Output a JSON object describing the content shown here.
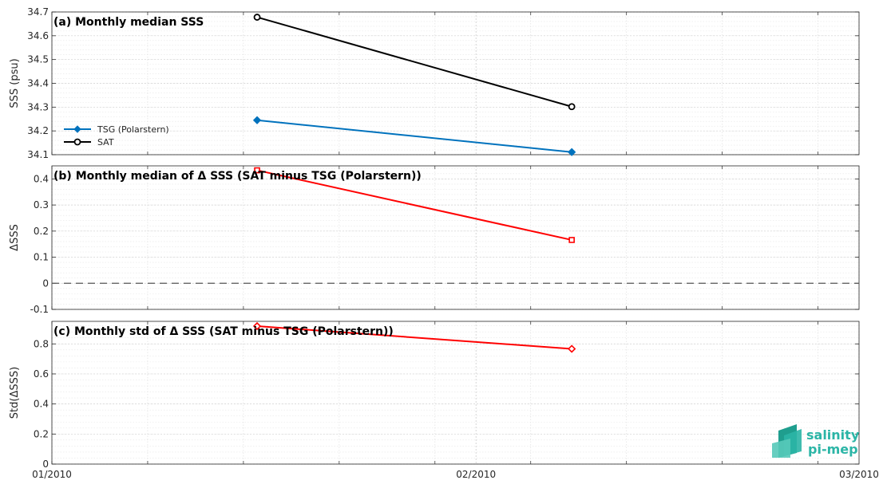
{
  "chart_data": [
    {
      "type": "line",
      "title": "(a) Monthly median SSS",
      "ylabel": "SSS (psu)",
      "xlim": [
        "2010-01-01",
        "2010-03-01"
      ],
      "ylim": [
        34.1,
        34.7
      ],
      "yticks": [
        34.1,
        34.2,
        34.3,
        34.4,
        34.5,
        34.6,
        34.7
      ],
      "ytick_labels": [
        "34.1",
        "34.2",
        "34.3",
        "34.4",
        "34.5",
        "34.6",
        "34.7"
      ],
      "grid": true,
      "legend_position": "left",
      "series": [
        {
          "name": "TSG (Polarstern)",
          "color": "#0072bd",
          "marker": "diamond",
          "x": [
            "2010-01-16",
            "2010-02-08"
          ],
          "y": [
            34.245,
            34.111
          ]
        },
        {
          "name": "SAT",
          "color": "#000000",
          "marker": "circle",
          "x": [
            "2010-01-16",
            "2010-02-08"
          ],
          "y": [
            34.678,
            34.302
          ]
        }
      ]
    },
    {
      "type": "line",
      "title": "(b) Monthly median of Δ SSS (SAT minus TSG (Polarstern))",
      "ylabel": "ΔSSS",
      "xlim": [
        "2010-01-01",
        "2010-03-01"
      ],
      "ylim": [
        -0.1,
        0.45
      ],
      "yticks": [
        -0.1,
        0,
        0.1,
        0.2,
        0.3,
        0.4
      ],
      "ytick_labels": [
        "-0.1",
        "0",
        "0.1",
        "0.2",
        "0.3",
        "0.4"
      ],
      "grid": true,
      "reference_line": {
        "y": 0,
        "style": "dashed",
        "color": "#555555"
      },
      "series": [
        {
          "color": "#ff0000",
          "marker": "square",
          "x": [
            "2010-01-16",
            "2010-02-08"
          ],
          "y": [
            0.433,
            0.166
          ]
        }
      ]
    },
    {
      "type": "line",
      "title": "(c) Monthly std of Δ SSS (SAT minus TSG (Polarstern))",
      "ylabel": "Std(ΔSSS)",
      "xlim": [
        "2010-01-01",
        "2010-03-01"
      ],
      "ylim": [
        0,
        0.95
      ],
      "yticks": [
        0,
        0.2,
        0.4,
        0.6,
        0.8
      ],
      "ytick_labels": [
        "0",
        "0.2",
        "0.4",
        "0.6",
        "0.8"
      ],
      "grid": true,
      "xticks": [
        "2010-01-01",
        "2010-02-01",
        "2010-03-01"
      ],
      "xtick_labels": [
        "01/2010",
        "02/2010",
        "03/2010"
      ],
      "series": [
        {
          "color": "#ff0000",
          "marker": "diamond",
          "x": [
            "2010-01-16",
            "2010-02-08"
          ],
          "y": [
            0.918,
            0.767
          ]
        }
      ]
    }
  ],
  "logo": {
    "line1": "salinity",
    "line2": "pi-mep",
    "color": "#2bb5a6"
  }
}
